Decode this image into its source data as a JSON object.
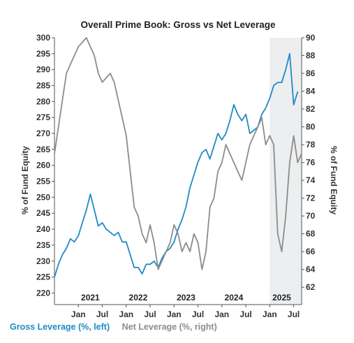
{
  "chart_data": {
    "type": "line",
    "title": "Overall Prime Book: Gross vs Net Leverage",
    "ylabel_left": "% of Fund Equity",
    "ylabel_right": "% of Fund Equity",
    "x_range": [
      "2020-07",
      "2025-09"
    ],
    "ylim_left": [
      219,
      300
    ],
    "ylim_right": [
      61,
      90
    ],
    "yticks_left": [
      220,
      225,
      230,
      235,
      240,
      245,
      250,
      255,
      260,
      265,
      270,
      275,
      280,
      285,
      290,
      295,
      300
    ],
    "yticks_right": [
      62,
      64,
      66,
      68,
      70,
      72,
      74,
      76,
      78,
      80,
      82,
      84,
      86,
      88,
      90
    ],
    "x_month_ticks": [
      {
        "date": "2021-01",
        "label": "Jan"
      },
      {
        "date": "2021-07",
        "label": "Jul"
      },
      {
        "date": "2022-01",
        "label": "Jan"
      },
      {
        "date": "2022-07",
        "label": "Jul"
      },
      {
        "date": "2023-01",
        "label": "Jan"
      },
      {
        "date": "2023-07",
        "label": "Jul"
      },
      {
        "date": "2024-01",
        "label": "Jan"
      },
      {
        "date": "2024-07",
        "label": "Jul"
      },
      {
        "date": "2025-01",
        "label": "Jan"
      },
      {
        "date": "2025-07",
        "label": "Jul"
      }
    ],
    "year_labels": [
      {
        "date": "2021-04",
        "label": "2021"
      },
      {
        "date": "2022-04",
        "label": "2022"
      },
      {
        "date": "2023-04",
        "label": "2023"
      },
      {
        "date": "2024-04",
        "label": "2024"
      },
      {
        "date": "2025-04",
        "label": "2025"
      }
    ],
    "shaded_region": [
      "2025-01",
      "2025-09"
    ],
    "series": [
      {
        "name": "Gross Leverage (%, left)",
        "axis": "left",
        "color": "#1f8bc4",
        "points": [
          [
            "2020-07",
            225
          ],
          [
            "2020-08",
            229
          ],
          [
            "2020-09",
            232
          ],
          [
            "2020-10",
            234
          ],
          [
            "2020-11",
            237
          ],
          [
            "2020-12",
            236
          ],
          [
            "2021-01",
            238
          ],
          [
            "2021-02",
            242
          ],
          [
            "2021-03",
            246
          ],
          [
            "2021-04",
            251
          ],
          [
            "2021-05",
            246
          ],
          [
            "2021-06",
            241
          ],
          [
            "2021-07",
            242
          ],
          [
            "2021-08",
            240
          ],
          [
            "2021-09",
            239
          ],
          [
            "2021-10",
            238
          ],
          [
            "2021-11",
            239
          ],
          [
            "2021-12",
            236
          ],
          [
            "2022-01",
            236
          ],
          [
            "2022-02",
            232
          ],
          [
            "2022-03",
            228
          ],
          [
            "2022-04",
            228
          ],
          [
            "2022-05",
            226
          ],
          [
            "2022-06",
            229
          ],
          [
            "2022-07",
            229
          ],
          [
            "2022-08",
            230
          ],
          [
            "2022-09",
            228
          ],
          [
            "2022-10",
            231
          ],
          [
            "2022-11",
            233
          ],
          [
            "2022-12",
            234
          ],
          [
            "2023-01",
            236
          ],
          [
            "2023-02",
            240
          ],
          [
            "2023-03",
            243
          ],
          [
            "2023-04",
            247
          ],
          [
            "2023-05",
            253
          ],
          [
            "2023-06",
            257
          ],
          [
            "2023-07",
            261
          ],
          [
            "2023-08",
            264
          ],
          [
            "2023-09",
            265
          ],
          [
            "2023-10",
            262
          ],
          [
            "2023-11",
            266
          ],
          [
            "2023-12",
            270
          ],
          [
            "2024-01",
            268
          ],
          [
            "2024-02",
            270
          ],
          [
            "2024-03",
            274
          ],
          [
            "2024-04",
            279
          ],
          [
            "2024-05",
            276
          ],
          [
            "2024-06",
            274
          ],
          [
            "2024-07",
            276
          ],
          [
            "2024-08",
            270
          ],
          [
            "2024-09",
            271
          ],
          [
            "2024-10",
            272
          ],
          [
            "2024-11",
            276
          ],
          [
            "2024-12",
            278
          ],
          [
            "2025-01",
            281
          ],
          [
            "2025-02",
            285
          ],
          [
            "2025-03",
            286
          ],
          [
            "2025-04",
            286
          ],
          [
            "2025-05",
            290
          ],
          [
            "2025-06",
            295
          ],
          [
            "2025-07",
            279
          ],
          [
            "2025-08",
            283
          ]
        ]
      },
      {
        "name": "Net Leverage (%, right)",
        "axis": "right",
        "color": "#8c8c8c",
        "points": [
          [
            "2020-07",
            77
          ],
          [
            "2020-08",
            80
          ],
          [
            "2020-09",
            83
          ],
          [
            "2020-10",
            86
          ],
          [
            "2020-11",
            87
          ],
          [
            "2020-12",
            88
          ],
          [
            "2021-01",
            89
          ],
          [
            "2021-02",
            89.5
          ],
          [
            "2021-03",
            90
          ],
          [
            "2021-04",
            89
          ],
          [
            "2021-05",
            88
          ],
          [
            "2021-06",
            86
          ],
          [
            "2021-07",
            85
          ],
          [
            "2021-08",
            85.5
          ],
          [
            "2021-09",
            86
          ],
          [
            "2021-10",
            85
          ],
          [
            "2021-11",
            83
          ],
          [
            "2021-12",
            81
          ],
          [
            "2022-01",
            79
          ],
          [
            "2022-02",
            75
          ],
          [
            "2022-03",
            71
          ],
          [
            "2022-04",
            70
          ],
          [
            "2022-05",
            68
          ],
          [
            "2022-06",
            67
          ],
          [
            "2022-07",
            69
          ],
          [
            "2022-08",
            67
          ],
          [
            "2022-09",
            64
          ],
          [
            "2022-10",
            65
          ],
          [
            "2022-11",
            66
          ],
          [
            "2022-12",
            67
          ],
          [
            "2023-01",
            69
          ],
          [
            "2023-02",
            68
          ],
          [
            "2023-03",
            66
          ],
          [
            "2023-04",
            67
          ],
          [
            "2023-05",
            66
          ],
          [
            "2023-06",
            68
          ],
          [
            "2023-07",
            67
          ],
          [
            "2023-08",
            64
          ],
          [
            "2023-09",
            66
          ],
          [
            "2023-10",
            71
          ],
          [
            "2023-11",
            72
          ],
          [
            "2023-12",
            75
          ],
          [
            "2024-01",
            76
          ],
          [
            "2024-02",
            78
          ],
          [
            "2024-03",
            77
          ],
          [
            "2024-04",
            76
          ],
          [
            "2024-05",
            75
          ],
          [
            "2024-06",
            74
          ],
          [
            "2024-07",
            76
          ],
          [
            "2024-08",
            78
          ],
          [
            "2024-09",
            79
          ],
          [
            "2024-10",
            80
          ],
          [
            "2024-11",
            81
          ],
          [
            "2024-12",
            78
          ],
          [
            "2025-01",
            79
          ],
          [
            "2025-02",
            78
          ],
          [
            "2025-03",
            68
          ],
          [
            "2025-04",
            66
          ],
          [
            "2025-05",
            70
          ],
          [
            "2025-06",
            76
          ],
          [
            "2025-07",
            79
          ],
          [
            "2025-08",
            76
          ],
          [
            "2025-09",
            77
          ]
        ]
      }
    ]
  }
}
